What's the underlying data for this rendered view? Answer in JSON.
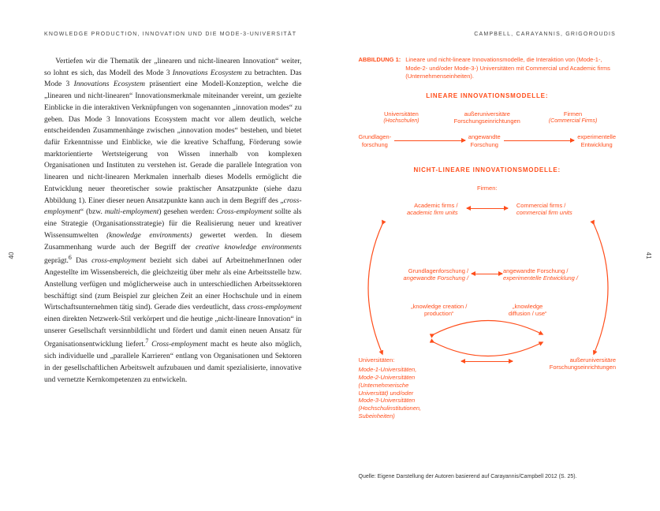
{
  "accent": "#ff4d1a",
  "left": {
    "running_head": "KNOWLEDGE PRODUCTION, INNOVATION UND DIE MODE-3-UNIVERSITÄT",
    "page_number": "40",
    "body_html": "<span class=\"indent\">Vertiefen wir die Thematik der „linearen und nicht-linearen Innovation“ weiter, so lohnt es sich, das Modell des Mode 3 <em>Innovations Ecosystem</em> zu betrachten. Das Mode 3 <em>Innovations Ecosystem</em> präsentiert eine Modell-Konzeption, welche die „linearen und nicht-linearen“ Innovationsmerkmale miteinander vereint, um gezielte Einblicke in die interaktiven Verknüpfungen von sogenannten „innovation modes“ zu geben. Das Mode 3 Innovations Ecosystem macht vor allem deutlich, welche entscheidenden Zusammenhänge zwischen „innovation modes“ bestehen, und bietet dafür Erkenntnisse und Einblicke, wie die kreative Schaffung, Förderung sowie marktorientierte Wertsteigerung von Wissen innerhalb von komplexen Organisationen und Instituten zu verstehen ist. Gerade die parallele Integration von linearen und nicht-linearen Merkmalen innerhalb dieses Modells ermöglicht die Entwicklung neuer theoretischer sowie praktischer Ansatzpunkte (siehe dazu Abbildung 1). Einer dieser neuen Ansatzpunkte kann auch in dem Begriff des „<em>cross-employment</em>“ (bzw. <em>multi-employment</em>) gesehen werden: <em>Cross-employment</em> sollte als eine Strategie (Organisationsstrategie) für die Realisierung neuer und kreativer Wissensumwelten <em>(knowledge environments)</em> gewertet werden. In diesem Zusammenhang wurde auch der Begriff der <em>creative knowledge environments</em> geprägt.<sup>6</sup> Das <em>cross-employment</em> bezieht sich dabei auf ArbeitnehmerInnen oder Angestellte im Wissensbereich, die gleichzeitig über mehr als eine Arbeitsstelle bzw. Anstellung verfügen und möglicherweise auch in unterschiedlichen Arbeitssektoren beschäftigt sind (zum Beispiel zur gleichen Zeit an einer Hochschule und in einem Wirtschaftsunternehmen tätig sind). Gerade dies verdeutlicht, dass <em>cross-employment</em> einen direkten Netzwerk-Stil verkörpert und die heutige „nicht-lineare Innovation“ in unserer Gesellschaft versinnbildlicht und fördert und damit einen neuen Ansatz für Organisationsentwicklung liefert.<sup>7</sup> <em>Cross-employment</em> macht es heute also möglich, sich individuelle und „parallele Karrieren“ entlang von Organisationen und Sektoren in der gesellschaftlichen Arbeitswelt aufzubauen und damit spezialisierte, innovative und vernetzte Kernkompetenzen zu entwickeln.</span>"
  },
  "right": {
    "running_head": "CAMPBELL, CARAYANNIS, GRIGOROUDIS",
    "page_number": "41",
    "figure": {
      "label": "ABBILDUNG 1:",
      "caption": "Lineare und nicht-lineare Innovationsmodelle, die Interaktion von (Mode-1-, Mode-2- und/oder Mode-3-) Universitäten mit Commercial und Academic firms (Unternehmenseinheiten).",
      "linear": {
        "title": "LINEARE INNOVATIONSMODELLE:",
        "cols": [
          {
            "a": "Universitäten",
            "b": "(Hochschulen)"
          },
          {
            "a": "außeruniversitäre",
            "b": "Forschungseinrichtungen"
          },
          {
            "a": "Firmen",
            "b": "(Commercial Firms)"
          }
        ],
        "flow": [
          "Grundlagen-\nforschung",
          "angewandte\nForschung",
          "experimentelle\nEntwicklung"
        ]
      },
      "nonlinear": {
        "title": "NICHT-LINEARE INNOVATIONSMODELLE:",
        "firms": "Firmen:",
        "academic_firms": "Academic firms /",
        "academic_sub": "academic firm units",
        "commercial_firms": "Commercial firms /",
        "commercial_sub": "commercial firm units",
        "grund": "Grundlagenforschung /",
        "grund_sub": "angewandte Forschung /",
        "angew": "angewandte Forschung /",
        "angew_sub": "experimentelle Entwicklung /",
        "kcreate": "„knowledge creation /\nproduction“",
        "kdiff": "„knowledge\ndiffusion / use“",
        "unis": "Universitäten:",
        "unis_detail": "Mode-1-Universitäten,\nMode-2-Universitäten\n(Unternehmerische\nUniversität) und/oder\nMode-3-Universitäten\n(Hochschulinstitutionen,\nSubeinheiten)",
        "extra": "außeruniversitäre\nForschungseinrichtungen"
      },
      "source": "Quelle: Eigene Darstellung der Autoren basierend auf Carayannis/Campbell 2012 (S. 25)."
    }
  }
}
